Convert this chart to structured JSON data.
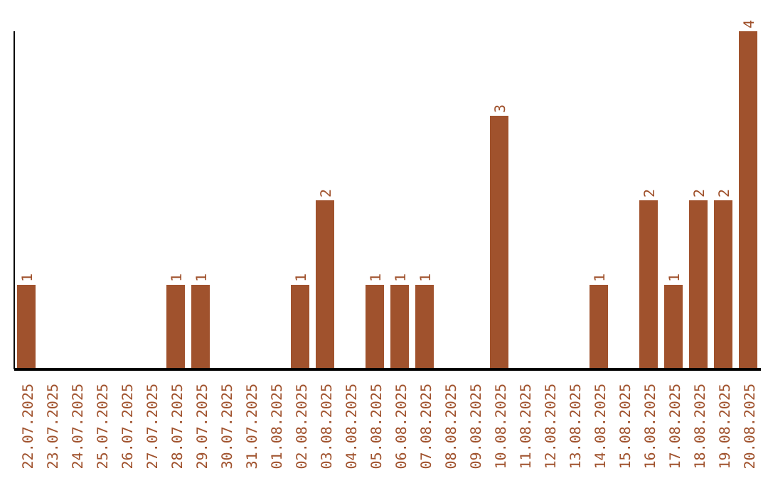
{
  "chart_data": {
    "type": "bar",
    "categories": [
      "22.07.2025",
      "23.07.2025",
      "24.07.2025",
      "25.07.2025",
      "26.07.2025",
      "27.07.2025",
      "28.07.2025",
      "29.07.2025",
      "30.07.2025",
      "31.07.2025",
      "01.08.2025",
      "02.08.2025",
      "03.08.2025",
      "04.08.2025",
      "05.08.2025",
      "06.08.2025",
      "07.08.2025",
      "08.08.2025",
      "09.08.2025",
      "10.08.2025",
      "11.08.2025",
      "12.08.2025",
      "13.08.2025",
      "14.08.2025",
      "15.08.2025",
      "16.08.2025",
      "17.08.2025",
      "18.08.2025",
      "19.08.2025",
      "20.08.2025"
    ],
    "values": [
      1,
      0,
      0,
      0,
      0,
      0,
      1,
      1,
      0,
      0,
      0,
      1,
      2,
      0,
      1,
      1,
      1,
      0,
      0,
      3,
      0,
      0,
      0,
      1,
      0,
      2,
      1,
      2,
      2,
      4
    ],
    "value_labels": [
      "1",
      null,
      null,
      null,
      null,
      null,
      "1",
      "1",
      null,
      null,
      null,
      "1",
      "2",
      null,
      "1",
      "1",
      "1",
      null,
      null,
      "3",
      null,
      null,
      null,
      "1",
      null,
      "2",
      "1",
      "2",
      "2",
      "4"
    ],
    "color": "#a0522d",
    "ylim": [
      0,
      4
    ],
    "tick_labels": "x",
    "grid": false,
    "legend": false
  }
}
